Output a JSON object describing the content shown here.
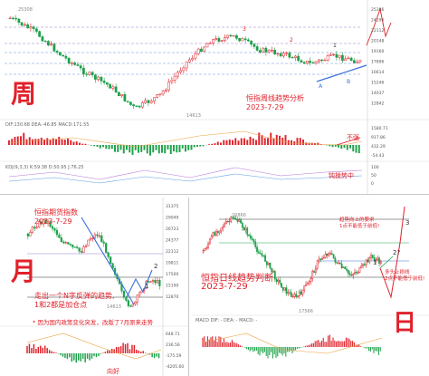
{
  "colors": {
    "up": "#e0212a",
    "down": "#1fa14a",
    "line_blue": "#3a6fd8",
    "note_red": "#e0212a"
  },
  "weekly": {
    "big_char": "周",
    "title": "恒指周线趋势分析",
    "date": "2023-7-29",
    "top_value": "25308",
    "low_value": "14613",
    "wave_labels": [
      "1",
      "3",
      "2",
      "A",
      "B"
    ],
    "price_axis": [
      "25386",
      "24196",
      "22112",
      "20148",
      "19160",
      "17896",
      "16614",
      "15246",
      "14037",
      "12842"
    ],
    "ind_header": "DIF:130.68  DEA:-46.85  MACD:171.55",
    "ind_header2": "KDJ(9,3,3)  K:59.38  D:50.95  J:76.25",
    "note_bad": "不强",
    "note_bottom": "钝挫势中",
    "macd_axis": [
      "1580.71",
      "917.86",
      "432.29",
      "-54.43"
    ],
    "kdj_axis": [
      "100",
      "50",
      "0"
    ]
  },
  "monthly": {
    "big_char": "月",
    "title": "恒指期货指数",
    "date": "2023-7-29",
    "line1": "走出一个N字反弹的趋势,",
    "line2": "1和2都是加仓点",
    "footnote": "* 因为国内政策变化突发，改版了7月原来走势",
    "low_value": "14613",
    "wave_labels": [
      "1",
      "2"
    ],
    "price_axis": [
      "31375",
      "29049",
      "26723",
      "24377",
      "22112",
      "19811",
      "17500",
      "15190",
      "12870"
    ],
    "macd_axis": [
      "648.71",
      "236.56",
      "-175.59",
      "-4205.60"
    ],
    "note_good": "向好"
  },
  "daily": {
    "big_char": "日",
    "title": "恒指日线趋势判断",
    "date": "2023-7-29",
    "top_value": "20866",
    "low_value": "17566",
    "note_up": "趋势向上的要求\n1点不能低于前低!",
    "note_down": "多头止损线\n2点不能低于前低!",
    "wave_labels": [
      "3",
      "2?",
      "1"
    ],
    "macd_header": "MACD   DIF:  -      DEA:  -      MACD: -"
  }
}
